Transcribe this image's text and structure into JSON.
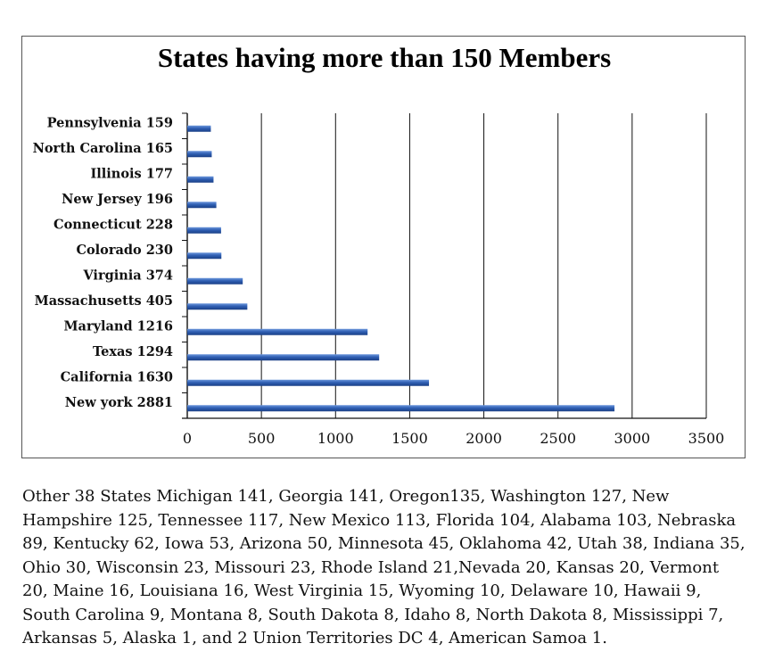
{
  "chart_data": {
    "type": "bar",
    "orientation": "horizontal",
    "title": "States having more than 150 Members",
    "categories": [
      "Pennsylvenia 159",
      "North Carolina 165",
      "Illinois 177",
      "New Jersey 196",
      "Connecticut 228",
      "Colorado 230",
      "Virginia 374",
      "Massachusetts 405",
      "Maryland 1216",
      "Texas 1294",
      "California 1630",
      "New york 2881"
    ],
    "values": [
      159,
      165,
      177,
      196,
      228,
      230,
      374,
      405,
      1216,
      1294,
      1630,
      2881
    ],
    "xlim": [
      0,
      3500
    ],
    "xticks": [
      "0",
      "500",
      "1000",
      "1500",
      "2000",
      "2500",
      "3000",
      "3500"
    ],
    "grid": "vertical",
    "legend": "none",
    "bar_color": "#2f5fb3"
  },
  "footer_text": "Other 38 States Michigan 141, Georgia 141, Oregon135, Washington 127, New Hampshire 125, Tennessee 117, New Mexico 113, Florida 104, Alabama 103, Nebraska 89, Kentucky 62, Iowa 53, Arizona 50, Minnesota 45, Oklahoma 42, Utah 38, Indiana 35, Ohio 30, Wisconsin 23, Missouri 23, Rhode Island 21,Nevada 20, Kansas 20, Vermont 20, Maine 16, Louisiana 16, West Virginia 15, Wyoming 10, Delaware 10, Hawaii 9, South Carolina 9, Montana 8, South Dakota 8, Idaho 8, North Dakota 8, Mississippi 7, Arkansas 5, Alaska 1, and 2 Union Territories DC 4, American Samoa 1."
}
